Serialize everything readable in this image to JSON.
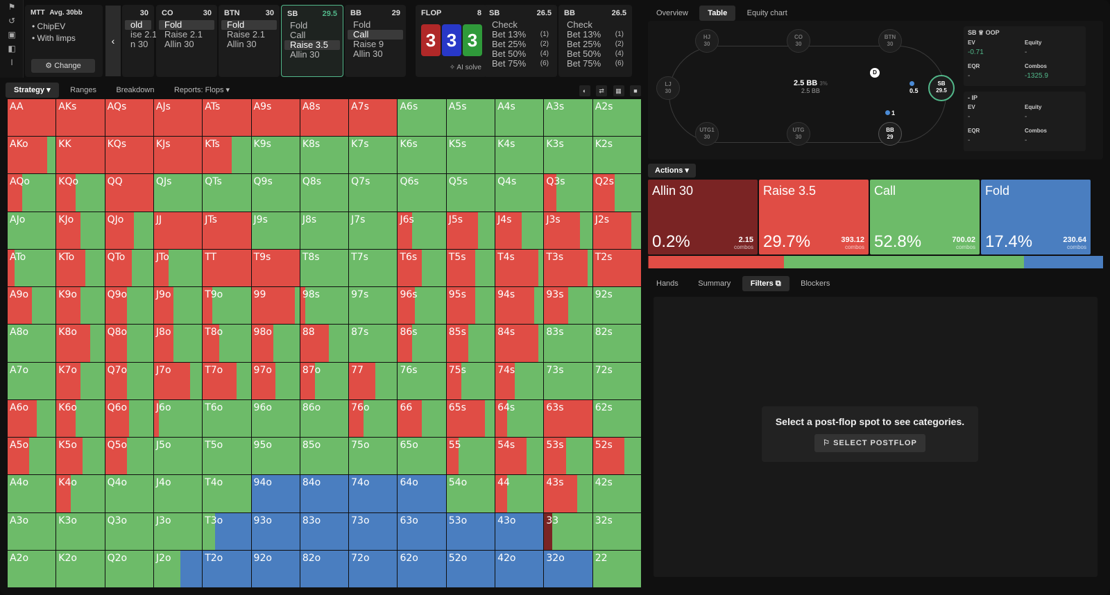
{
  "icons": [
    "bookmark-icon",
    "history-icon",
    "save-icon",
    "gamepad-icon",
    "text-cursor-icon"
  ],
  "mtt": {
    "title": "MTT",
    "avg": "Avg. 30bb",
    "line1": "ChipEV",
    "line2": "With limps",
    "change": "Change"
  },
  "positions": [
    {
      "key": "lj",
      "name": "",
      "stack": "30",
      "opts": [
        {
          "t": "old",
          "n": "",
          "sel": true
        },
        {
          "t": "ise 2.1",
          "n": "",
          "sel": false
        },
        {
          "t": "n 30",
          "n": "",
          "sel": false
        }
      ]
    },
    {
      "key": "co",
      "name": "CO",
      "stack": "30",
      "opts": [
        {
          "t": "Fold",
          "n": "",
          "sel": true
        },
        {
          "t": "Raise 2.1",
          "n": "",
          "sel": false
        },
        {
          "t": "Allin 30",
          "n": "",
          "sel": false
        }
      ]
    },
    {
      "key": "btn",
      "name": "BTN",
      "stack": "30",
      "opts": [
        {
          "t": "Fold",
          "n": "",
          "sel": true
        },
        {
          "t": "Raise 2.1",
          "n": "",
          "sel": false
        },
        {
          "t": "Allin 30",
          "n": "",
          "sel": false
        }
      ]
    },
    {
      "key": "sb",
      "name": "SB",
      "stack": "29.5",
      "opts": [
        {
          "t": "Fold",
          "n": "",
          "sel": false
        },
        {
          "t": "Call",
          "n": "",
          "sel": false
        },
        {
          "t": "Raise 3.5",
          "n": "",
          "sel": true
        },
        {
          "t": "Allin 30",
          "n": "",
          "sel": false
        }
      ]
    },
    {
      "key": "bb",
      "name": "BB",
      "stack": "29",
      "opts": [
        {
          "t": "Fold",
          "n": "",
          "sel": false
        },
        {
          "t": "Call",
          "n": "",
          "sel": true
        },
        {
          "t": "Raise 9",
          "n": "",
          "sel": false
        },
        {
          "t": "Allin 30",
          "n": "",
          "sel": false
        }
      ]
    },
    {
      "key": "sb2",
      "name": "SB",
      "stack": "26.5",
      "opts": [
        {
          "t": "Check",
          "n": "",
          "sel": false
        },
        {
          "t": "Bet 13%",
          "n": "(1)",
          "sel": false
        },
        {
          "t": "Bet 25%",
          "n": "(2)",
          "sel": false
        },
        {
          "t": "Bet 50%",
          "n": "(4)",
          "sel": false
        },
        {
          "t": "Bet 75%",
          "n": "(6)",
          "sel": false
        }
      ]
    },
    {
      "key": "bb2",
      "name": "BB",
      "stack": "26.5",
      "opts": [
        {
          "t": "Check",
          "n": "",
          "sel": false
        },
        {
          "t": "Bet 13%",
          "n": "(1)",
          "sel": false
        },
        {
          "t": "Bet 25%",
          "n": "(2)",
          "sel": false
        },
        {
          "t": "Bet 50%",
          "n": "(4)",
          "sel": false
        },
        {
          "t": "Bet 75%",
          "n": "(6)",
          "sel": false
        }
      ]
    }
  ],
  "flop": {
    "label": "FLOP",
    "count": "8",
    "cards": [
      {
        "r": "3",
        "color": "#b02828"
      },
      {
        "r": "3",
        "color": "#2838c8"
      },
      {
        "r": "3",
        "color": "#2f9a3a"
      }
    ],
    "ai": "AI solve"
  },
  "subnav": [
    "Strategy",
    "Ranges",
    "Breakdown",
    "Reports: Flops"
  ],
  "colors": {
    "allin": "#7a2424",
    "raise": "#e04d45",
    "call": "#6dbb69",
    "fold": "#4a7ec0"
  },
  "hands": [
    "AA",
    "AKs",
    "AQs",
    "AJs",
    "ATs",
    "A9s",
    "A8s",
    "A7s",
    "A6s",
    "A5s",
    "A4s",
    "A3s",
    "A2s",
    "AKo",
    "KK",
    "KQs",
    "KJs",
    "KTs",
    "K9s",
    "K8s",
    "K7s",
    "K6s",
    "K5s",
    "K4s",
    "K3s",
    "K2s",
    "AQo",
    "KQo",
    "QQ",
    "QJs",
    "QTs",
    "Q9s",
    "Q8s",
    "Q7s",
    "Q6s",
    "Q5s",
    "Q4s",
    "Q3s",
    "Q2s",
    "AJo",
    "KJo",
    "QJo",
    "JJ",
    "JTs",
    "J9s",
    "J8s",
    "J7s",
    "J6s",
    "J5s",
    "J4s",
    "J3s",
    "J2s",
    "ATo",
    "KTo",
    "QTo",
    "JTo",
    "TT",
    "T9s",
    "T8s",
    "T7s",
    "T6s",
    "T5s",
    "T4s",
    "T3s",
    "T2s",
    "A9o",
    "K9o",
    "Q9o",
    "J9o",
    "T9o",
    "99",
    "98s",
    "97s",
    "96s",
    "95s",
    "94s",
    "93s",
    "92s",
    "A8o",
    "K8o",
    "Q8o",
    "J8o",
    "T8o",
    "98o",
    "88",
    "87s",
    "86s",
    "85s",
    "84s",
    "83s",
    "82s",
    "A7o",
    "K7o",
    "Q7o",
    "J7o",
    "T7o",
    "97o",
    "87o",
    "77",
    "76s",
    "75s",
    "74s",
    "73s",
    "72s",
    "A6o",
    "K6o",
    "Q6o",
    "J6o",
    "T6o",
    "96o",
    "86o",
    "76o",
    "66",
    "65s",
    "64s",
    "63s",
    "62s",
    "A5o",
    "K5o",
    "Q5o",
    "J5o",
    "T5o",
    "95o",
    "85o",
    "75o",
    "65o",
    "55",
    "54s",
    "53s",
    "52s",
    "A4o",
    "K4o",
    "Q4o",
    "J4o",
    "T4o",
    "94o",
    "84o",
    "74o",
    "64o",
    "54o",
    "44",
    "43s",
    "42s",
    "A3o",
    "K3o",
    "Q3o",
    "J3o",
    "T3o",
    "93o",
    "83o",
    "73o",
    "63o",
    "53o",
    "43o",
    "33",
    "32s",
    "A2o",
    "K2o",
    "Q2o",
    "J2o",
    "T2o",
    "92o",
    "82o",
    "72o",
    "62o",
    "52o",
    "42o",
    "32o",
    "22"
  ],
  "freqs": [
    [
      0,
      100,
      0,
      0
    ],
    [
      0,
      100,
      0,
      0
    ],
    [
      0,
      100,
      0,
      0
    ],
    [
      0,
      100,
      0,
      0
    ],
    [
      0,
      100,
      0,
      0
    ],
    [
      0,
      100,
      0,
      0
    ],
    [
      0,
      100,
      0,
      0
    ],
    [
      0,
      100,
      0,
      0
    ],
    [
      0,
      0,
      100,
      0
    ],
    [
      0,
      0,
      100,
      0
    ],
    [
      0,
      0,
      100,
      0
    ],
    [
      0,
      0,
      100,
      0
    ],
    [
      0,
      0,
      100,
      0
    ],
    [
      0,
      82,
      18,
      0
    ],
    [
      0,
      100,
      0,
      0
    ],
    [
      0,
      100,
      0,
      0
    ],
    [
      0,
      100,
      0,
      0
    ],
    [
      0,
      60,
      40,
      0
    ],
    [
      0,
      0,
      100,
      0
    ],
    [
      0,
      0,
      100,
      0
    ],
    [
      0,
      0,
      100,
      0
    ],
    [
      0,
      0,
      100,
      0
    ],
    [
      0,
      0,
      100,
      0
    ],
    [
      0,
      0,
      100,
      0
    ],
    [
      0,
      0,
      100,
      0
    ],
    [
      0,
      0,
      100,
      0
    ],
    [
      0,
      30,
      70,
      0
    ],
    [
      0,
      40,
      60,
      0
    ],
    [
      0,
      100,
      0,
      0
    ],
    [
      0,
      0,
      100,
      0
    ],
    [
      0,
      0,
      100,
      0
    ],
    [
      0,
      0,
      100,
      0
    ],
    [
      0,
      0,
      100,
      0
    ],
    [
      0,
      0,
      100,
      0
    ],
    [
      0,
      0,
      100,
      0
    ],
    [
      0,
      0,
      100,
      0
    ],
    [
      0,
      0,
      100,
      0
    ],
    [
      0,
      25,
      75,
      0
    ],
    [
      0,
      45,
      55,
      0
    ],
    [
      0,
      0,
      100,
      0
    ],
    [
      0,
      50,
      50,
      0
    ],
    [
      0,
      60,
      40,
      0
    ],
    [
      0,
      100,
      0,
      0
    ],
    [
      0,
      100,
      0,
      0
    ],
    [
      0,
      0,
      100,
      0
    ],
    [
      0,
      0,
      100,
      0
    ],
    [
      0,
      0,
      100,
      0
    ],
    [
      0,
      30,
      70,
      0
    ],
    [
      0,
      65,
      35,
      0
    ],
    [
      0,
      55,
      45,
      0
    ],
    [
      0,
      75,
      25,
      0
    ],
    [
      0,
      80,
      20,
      0
    ],
    [
      0,
      15,
      85,
      0
    ],
    [
      0,
      60,
      40,
      0
    ],
    [
      0,
      55,
      45,
      0
    ],
    [
      0,
      30,
      70,
      0
    ],
    [
      0,
      100,
      0,
      0
    ],
    [
      0,
      100,
      0,
      0
    ],
    [
      0,
      0,
      100,
      0
    ],
    [
      0,
      0,
      100,
      0
    ],
    [
      0,
      50,
      50,
      0
    ],
    [
      0,
      60,
      40,
      0
    ],
    [
      0,
      90,
      10,
      0
    ],
    [
      0,
      90,
      10,
      0
    ],
    [
      0,
      100,
      0,
      0
    ],
    [
      0,
      50,
      50,
      0
    ],
    [
      0,
      50,
      50,
      0
    ],
    [
      0,
      45,
      55,
      0
    ],
    [
      0,
      40,
      60,
      0
    ],
    [
      0,
      20,
      80,
      0
    ],
    [
      0,
      90,
      10,
      0
    ],
    [
      0,
      10,
      90,
      0
    ],
    [
      0,
      0,
      100,
      0
    ],
    [
      0,
      35,
      65,
      0
    ],
    [
      0,
      60,
      40,
      0
    ],
    [
      0,
      80,
      20,
      0
    ],
    [
      0,
      50,
      50,
      0
    ],
    [
      0,
      0,
      100,
      0
    ],
    [
      0,
      0,
      100,
      0
    ],
    [
      0,
      70,
      30,
      0
    ],
    [
      0,
      45,
      55,
      0
    ],
    [
      0,
      40,
      60,
      0
    ],
    [
      0,
      35,
      65,
      0
    ],
    [
      0,
      45,
      55,
      0
    ],
    [
      0,
      60,
      40,
      0
    ],
    [
      0,
      0,
      100,
      0
    ],
    [
      0,
      30,
      70,
      0
    ],
    [
      0,
      45,
      55,
      0
    ],
    [
      0,
      90,
      10,
      0
    ],
    [
      0,
      0,
      100,
      0
    ],
    [
      0,
      0,
      100,
      0
    ],
    [
      0,
      0,
      100,
      0
    ],
    [
      0,
      50,
      50,
      0
    ],
    [
      0,
      45,
      55,
      0
    ],
    [
      0,
      75,
      25,
      0
    ],
    [
      0,
      70,
      30,
      0
    ],
    [
      0,
      50,
      50,
      0
    ],
    [
      0,
      30,
      70,
      0
    ],
    [
      0,
      55,
      45,
      0
    ],
    [
      0,
      0,
      100,
      0
    ],
    [
      0,
      30,
      70,
      0
    ],
    [
      0,
      40,
      60,
      0
    ],
    [
      0,
      0,
      100,
      0
    ],
    [
      0,
      0,
      100,
      0
    ],
    [
      0,
      60,
      40,
      0
    ],
    [
      0,
      40,
      60,
      0
    ],
    [
      0,
      50,
      50,
      0
    ],
    [
      0,
      10,
      90,
      0
    ],
    [
      0,
      0,
      100,
      0
    ],
    [
      0,
      0,
      100,
      0
    ],
    [
      0,
      0,
      100,
      0
    ],
    [
      0,
      30,
      70,
      0
    ],
    [
      0,
      50,
      50,
      0
    ],
    [
      0,
      80,
      20,
      0
    ],
    [
      0,
      25,
      75,
      0
    ],
    [
      0,
      100,
      0,
      0
    ],
    [
      0,
      0,
      100,
      0
    ],
    [
      0,
      45,
      55,
      0
    ],
    [
      0,
      55,
      45,
      0
    ],
    [
      0,
      45,
      55,
      0
    ],
    [
      0,
      0,
      100,
      0
    ],
    [
      0,
      0,
      100,
      0
    ],
    [
      0,
      0,
      100,
      0
    ],
    [
      0,
      0,
      100,
      0
    ],
    [
      0,
      0,
      100,
      0
    ],
    [
      0,
      0,
      100,
      0
    ],
    [
      0,
      25,
      75,
      0
    ],
    [
      0,
      65,
      35,
      0
    ],
    [
      0,
      45,
      55,
      0
    ],
    [
      0,
      65,
      35,
      0
    ],
    [
      0,
      0,
      100,
      0
    ],
    [
      0,
      30,
      70,
      0
    ],
    [
      0,
      0,
      100,
      0
    ],
    [
      0,
      0,
      100,
      0
    ],
    [
      0,
      0,
      100,
      0
    ],
    [
      0,
      0,
      0,
      100
    ],
    [
      0,
      0,
      0,
      100
    ],
    [
      0,
      0,
      0,
      100
    ],
    [
      0,
      0,
      0,
      100
    ],
    [
      0,
      0,
      100,
      0
    ],
    [
      0,
      25,
      75,
      0
    ],
    [
      0,
      68,
      32,
      0
    ],
    [
      0,
      0,
      100,
      0
    ],
    [
      0,
      0,
      100,
      0
    ],
    [
      0,
      0,
      100,
      0
    ],
    [
      0,
      0,
      100,
      0
    ],
    [
      0,
      0,
      100,
      0
    ],
    [
      0,
      0,
      25,
      75
    ],
    [
      0,
      0,
      0,
      100
    ],
    [
      0,
      0,
      0,
      100
    ],
    [
      0,
      0,
      0,
      100
    ],
    [
      0,
      0,
      0,
      100
    ],
    [
      0,
      0,
      0,
      100
    ],
    [
      0,
      0,
      0,
      100
    ],
    [
      17,
      0,
      83,
      0
    ],
    [
      0,
      0,
      100,
      0
    ],
    [
      0,
      0,
      100,
      0
    ],
    [
      0,
      0,
      100,
      0
    ],
    [
      0,
      0,
      100,
      0
    ],
    [
      0,
      0,
      55,
      45
    ],
    [
      0,
      0,
      0,
      100
    ],
    [
      0,
      0,
      0,
      100
    ],
    [
      0,
      0,
      0,
      100
    ],
    [
      0,
      0,
      0,
      100
    ],
    [
      0,
      0,
      0,
      100
    ],
    [
      0,
      0,
      0,
      100
    ],
    [
      0,
      0,
      0,
      100
    ],
    [
      0,
      0,
      0,
      100
    ],
    [
      0,
      0,
      100,
      0
    ]
  ],
  "rtabs": [
    "Overview",
    "Table",
    "Equity chart"
  ],
  "seats": [
    {
      "key": "hj",
      "name": "HJ",
      "stack": "30"
    },
    {
      "key": "co",
      "name": "CO",
      "stack": "30"
    },
    {
      "key": "btn",
      "name": "BTN",
      "stack": "30"
    },
    {
      "key": "lj",
      "name": "LJ",
      "stack": "30"
    },
    {
      "key": "sb",
      "name": "SB",
      "stack": "29.5"
    },
    {
      "key": "utg1",
      "name": "UTG1",
      "stack": "30"
    },
    {
      "key": "utg",
      "name": "UTG",
      "stack": "30"
    },
    {
      "key": "bb",
      "name": "BB",
      "stack": "29"
    }
  ],
  "pot": {
    "main": "2.5 BB",
    "pct": "3%",
    "sub": "2.5 BB"
  },
  "chips": {
    "sb": "0.5",
    "bb": "1",
    "dealer": "D"
  },
  "stats": {
    "oop": {
      "head": "SB ♕ OOP",
      "ev_label": "EV",
      "ev": "-0.71",
      "eq_label": "Equity",
      "eq": "-",
      "eqr_label": "EQR",
      "eqr": "-",
      "combos_label": "Combos",
      "combos": "-1325.9"
    },
    "ip": {
      "head": "- IP",
      "ev_label": "EV",
      "ev": "-",
      "eq_label": "Equity",
      "eq": "-",
      "eqr_label": "EQR",
      "eqr": "-",
      "combos_label": "Combos",
      "combos": "-"
    }
  },
  "actions": {
    "label": "Actions",
    "combos_word": "combos",
    "items": [
      {
        "key": "allin",
        "name": "Allin 30",
        "pct": "0.2%",
        "freq": 0.2,
        "combos": "2.15"
      },
      {
        "key": "raise",
        "name": "Raise 3.5",
        "pct": "29.7%",
        "freq": 29.7,
        "combos": "393.12"
      },
      {
        "key": "call",
        "name": "Call",
        "pct": "52.8%",
        "freq": 52.8,
        "combos": "700.02"
      },
      {
        "key": "fold",
        "name": "Fold",
        "pct": "17.4%",
        "freq": 17.4,
        "combos": "230.64"
      }
    ]
  },
  "btabs": [
    "Hands",
    "Summary",
    "Filters",
    "Blockers"
  ],
  "filters": {
    "message": "Select a post-flop spot to see categories.",
    "button": "SELECT POSTFLOP"
  }
}
